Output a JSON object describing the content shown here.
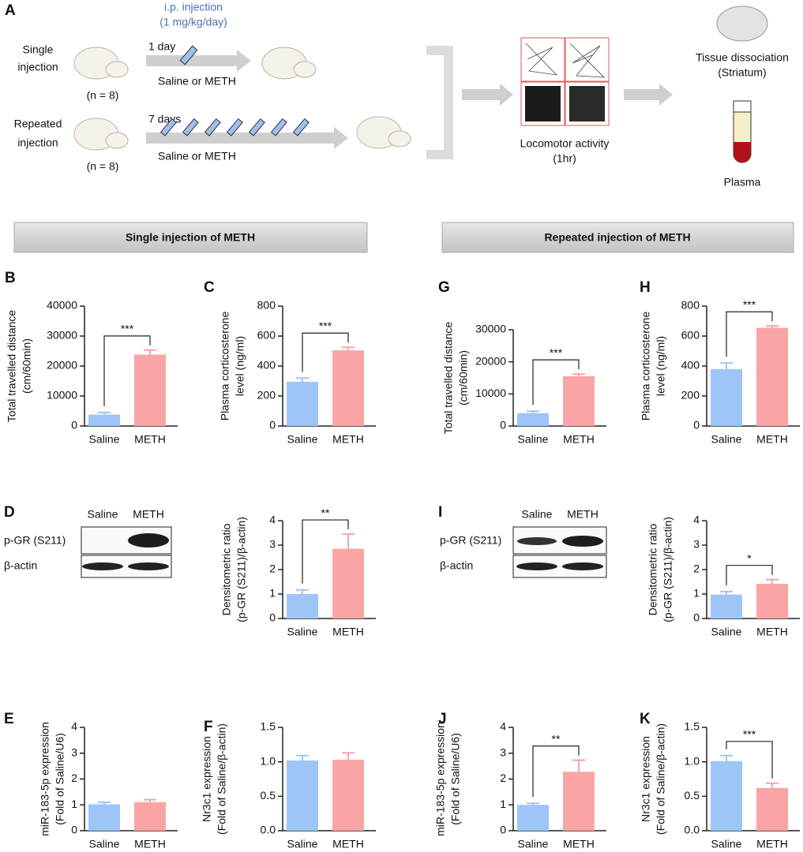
{
  "diagram": {
    "label": "A",
    "dose": [
      "i.p. injection",
      "(1 mg/kg/day)"
    ],
    "groups": [
      {
        "name": [
          "Single",
          "injection"
        ],
        "duration": "1 day",
        "treatment": "Saline or METH",
        "n": "(n = 8)"
      },
      {
        "name": [
          "Repeated",
          "injection"
        ],
        "duration": "7 days",
        "treatment": "Saline or METH",
        "n": "(n = 8)"
      }
    ],
    "locomotor": [
      "Locomotor activity",
      "(1hr)"
    ],
    "tissue": [
      "Tissue dissociation",
      "(Striatum)"
    ],
    "plasma": "Plasma"
  },
  "sections": [
    "Single injection of METH",
    "Repeated injection of METH"
  ],
  "blots": [
    {
      "lanes": [
        "Saline",
        "METH"
      ],
      "rows": [
        "p-GR (S211)",
        "β-actin"
      ]
    },
    {
      "lanes": [
        "Saline",
        "METH"
      ],
      "rows": [
        "p-GR (S211)",
        "β-actin"
      ]
    }
  ],
  "chart_data": [
    {
      "type": "bar",
      "panel": "B",
      "ylabel": [
        "Total travelled distance",
        "(cm/60min)"
      ],
      "categories": [
        "Saline",
        "METH"
      ],
      "values": [
        3800,
        23800
      ],
      "errors": [
        700,
        1500
      ],
      "colors": [
        "#9ec5f8",
        "#f9a5a5"
      ],
      "ylim": [
        0,
        40000
      ],
      "yticks": [
        0,
        10000,
        20000,
        30000,
        40000
      ],
      "significance": "***"
    },
    {
      "type": "bar",
      "panel": "C",
      "ylabel": [
        "Plasma corticosterone",
        "level (ng/ml)"
      ],
      "categories": [
        "Saline",
        "METH"
      ],
      "values": [
        295,
        505
      ],
      "errors": [
        25,
        20
      ],
      "colors": [
        "#9ec5f8",
        "#f9a5a5"
      ],
      "ylim": [
        0,
        800
      ],
      "yticks": [
        0,
        200,
        400,
        600,
        800
      ],
      "significance": "***"
    },
    {
      "type": "bar",
      "panel": "G",
      "ylabel": [
        "Total travelled distance",
        "(cm/60min)"
      ],
      "categories": [
        "Saline",
        "METH"
      ],
      "values": [
        4000,
        15500
      ],
      "errors": [
        600,
        700
      ],
      "colors": [
        "#9ec5f8",
        "#f9a5a5"
      ],
      "ylim": [
        0,
        30000
      ],
      "yticks": [
        0,
        10000,
        20000,
        30000
      ],
      "significance": "***"
    },
    {
      "type": "bar",
      "panel": "H",
      "ylabel": [
        "Plasma corticosterone",
        "level (ng/ml)"
      ],
      "categories": [
        "Saline",
        "METH"
      ],
      "values": [
        380,
        655
      ],
      "errors": [
        40,
        12
      ],
      "colors": [
        "#9ec5f8",
        "#f9a5a5"
      ],
      "ylim": [
        0,
        800
      ],
      "yticks": [
        0,
        200,
        400,
        600,
        800
      ],
      "significance": "***"
    },
    {
      "type": "bar",
      "panel": "D",
      "ylabel": [
        "Densitometric ratio",
        "(p-GR (S211)/β-actin)"
      ],
      "categories": [
        "Saline",
        "METH"
      ],
      "values": [
        1.0,
        2.85
      ],
      "errors": [
        0.17,
        0.6
      ],
      "colors": [
        "#9ec5f8",
        "#f9a5a5"
      ],
      "ylim": [
        0,
        4
      ],
      "yticks": [
        0,
        1,
        2,
        3,
        4
      ],
      "significance": "**"
    },
    {
      "type": "bar",
      "panel": "I",
      "ylabel": [
        "Densitometric ratio",
        "(p-GR (S211)/β-actin)"
      ],
      "categories": [
        "Saline",
        "METH"
      ],
      "values": [
        0.98,
        1.42
      ],
      "errors": [
        0.12,
        0.17
      ],
      "colors": [
        "#9ec5f8",
        "#f9a5a5"
      ],
      "ylim": [
        0,
        4
      ],
      "yticks": [
        0,
        1,
        2,
        3,
        4
      ],
      "significance": "*"
    },
    {
      "type": "bar",
      "panel": "E",
      "ylabel": [
        "miR-183-5p expression",
        "(Fold of Saline/U6)"
      ],
      "categories": [
        "Saline",
        "METH"
      ],
      "values": [
        1.02,
        1.1
      ],
      "errors": [
        0.08,
        0.1
      ],
      "colors": [
        "#9ec5f8",
        "#f9a5a5"
      ],
      "ylim": [
        0,
        4
      ],
      "yticks": [
        0,
        1,
        2,
        3,
        4
      ]
    },
    {
      "type": "bar",
      "panel": "F",
      "ylabel": [
        "Nr3c1 expression",
        "(Fold of Saline/β-actin)"
      ],
      "categories": [
        "Saline",
        "METH"
      ],
      "values": [
        1.02,
        1.03
      ],
      "errors": [
        0.07,
        0.1
      ],
      "colors": [
        "#9ec5f8",
        "#f9a5a5"
      ],
      "ylim": [
        0,
        1.5
      ],
      "yticks": [
        {
          "value": 0,
          "label": "0.0"
        },
        0.5,
        {
          "value": 1,
          "label": "1.0"
        },
        1.5
      ]
    },
    {
      "type": "bar",
      "panel": "J",
      "ylabel": [
        "miR-183-5p expression",
        "(Fold of Saline/U6)"
      ],
      "categories": [
        "Saline",
        "METH"
      ],
      "values": [
        1.0,
        2.28
      ],
      "errors": [
        0.06,
        0.45
      ],
      "colors": [
        "#9ec5f8",
        "#f9a5a5"
      ],
      "ylim": [
        0,
        4
      ],
      "yticks": [
        0,
        1,
        2,
        3,
        4
      ],
      "significance": "**"
    },
    {
      "type": "bar",
      "panel": "K",
      "ylabel": [
        "Nr3c1 expression",
        "(Fold of Saline/β-actin)"
      ],
      "categories": [
        "Saline",
        "METH"
      ],
      "values": [
        1.01,
        0.62
      ],
      "errors": [
        0.08,
        0.07
      ],
      "colors": [
        "#9ec5f8",
        "#f9a5a5"
      ],
      "ylim": [
        0,
        1.5
      ],
      "yticks": [
        {
          "value": 0,
          "label": "0.0"
        },
        0.5,
        {
          "value": 1,
          "label": "1.0"
        },
        1.5
      ],
      "significance": "***"
    }
  ]
}
